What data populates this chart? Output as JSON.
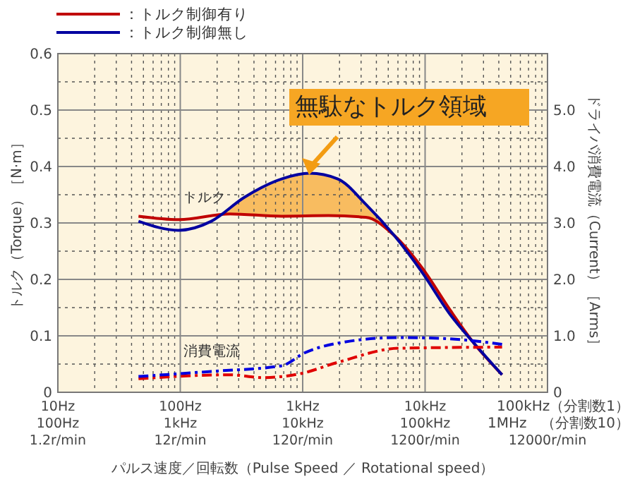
{
  "chart_data": {
    "type": "line",
    "xlabel": "パルス速度／回転数（Pulse Speed ／ Rotational speed）",
    "ylabel": "トルク（Torque）［N·m］",
    "y2label": "ドライバ消費電流（Current）［Arms］",
    "log": "x",
    "xlim": [
      1.2,
      12000
    ],
    "xticks": [
      {
        "value": 1.2,
        "label": "1.2r/min"
      },
      {
        "value": 12,
        "label": "12r/min"
      },
      {
        "value": 120,
        "label": "120r/min"
      },
      {
        "value": 1200,
        "label": "1200r/min"
      },
      {
        "value": 12000,
        "label": "12000r/min"
      }
    ],
    "ylim": [
      0,
      0.6
    ],
    "yticks": [
      0,
      0.1,
      0.2,
      0.3,
      0.4,
      0.5,
      0.6
    ],
    "y2lim": [
      0,
      6
    ],
    "y2ticks": [
      0,
      {
        "value": 1,
        "label": "1.0"
      },
      {
        "value": 2,
        "label": "2.0"
      },
      {
        "value": 3,
        "label": "3.0"
      },
      {
        "value": 4,
        "label": "4.0"
      },
      {
        "value": 5,
        "label": "5.0"
      }
    ],
    "grid": true,
    "legend": "top left",
    "line_style": "solid",
    "series": [
      {
        "name": "：トルク制御有り",
        "color": "#c00000",
        "x": [
          5.47,
          11.6,
          30.6,
          80.8,
          195,
          394,
          670,
          1138,
          1932,
          3007,
          5106
        ],
        "values": [
          0.312,
          0.306,
          0.316,
          0.312,
          0.313,
          0.31,
          0.278,
          0.22,
          0.145,
          0.087,
          0.031
        ]
      },
      {
        "name": "：トルク制御無し",
        "color": "#0000a0",
        "x": [
          5.47,
          11.6,
          21.5,
          39.8,
          80.8,
          137,
          232,
          394,
          670,
          1138,
          1932,
          3007,
          5106
        ],
        "values": [
          0.303,
          0.287,
          0.303,
          0.345,
          0.378,
          0.388,
          0.378,
          0.333,
          0.278,
          0.212,
          0.137,
          0.087,
          0.031
        ]
      },
      {
        "color": "#e00000",
        "axis": "y2",
        "line_style": "dashed",
        "x": [
          5.47,
          30.6,
          56.8,
          115,
          232,
          732,
          5106
        ],
        "values": [
          0.24,
          0.31,
          0.26,
          0.33,
          0.53,
          0.78,
          0.8
        ]
      },
      {
        "color": "#0000e0",
        "axis": "y2",
        "line_style": "dashed",
        "x": [
          5.47,
          21.5,
          80.8,
          125,
          232,
          732,
          1770,
          5106
        ],
        "values": [
          0.28,
          0.37,
          0.47,
          0.7,
          0.87,
          0.97,
          0.95,
          0.85
        ]
      }
    ],
    "annotations": [
      "無駄なトルク領域",
      "トルク",
      "消費電流",
      "10Hz",
      "100Hz",
      "1kHz",
      "10kHz",
      "100kHz（分割数1）",
      "100Hz",
      "1kHz",
      "10kHz",
      "100kHz",
      "1MHz　（分割数10）"
    ]
  }
}
